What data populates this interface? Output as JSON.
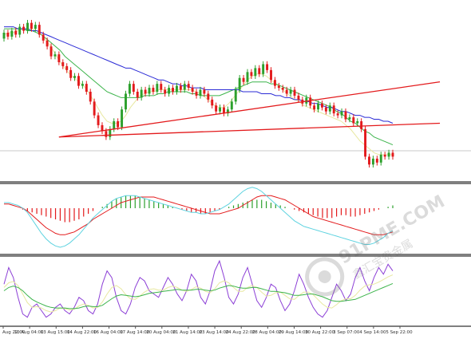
{
  "chart_data": [
    {
      "type": "candlestick",
      "panel": "price",
      "x_labels": [
        "Aug 22:00",
        "10 Aug 04:00",
        "13 Aug 15:00",
        "14 Aug 22:00",
        "16 Aug 04:00",
        "17 Aug 14:00",
        "20 Aug 04:00",
        "21 Aug 14:00",
        "23 Aug 14:00",
        "24 Aug 22:00",
        "28 Aug 04:00",
        "29 Aug 14:00",
        "30 Aug 22:00",
        "3 Sep 07:00",
        "4 Sep 14:00",
        "5 Sep 22:00"
      ],
      "candles": [
        {
          "o": 72,
          "c": 75
        },
        {
          "o": 75,
          "c": 73
        },
        {
          "o": 73,
          "c": 76
        },
        {
          "o": 76,
          "c": 74
        },
        {
          "o": 74,
          "c": 78
        },
        {
          "o": 78,
          "c": 76
        },
        {
          "o": 76,
          "c": 80
        },
        {
          "o": 80,
          "c": 77
        },
        {
          "o": 77,
          "c": 79
        },
        {
          "o": 79,
          "c": 74
        },
        {
          "o": 74,
          "c": 71
        },
        {
          "o": 71,
          "c": 68
        },
        {
          "o": 68,
          "c": 63
        },
        {
          "o": 63,
          "c": 64
        },
        {
          "o": 64,
          "c": 60
        },
        {
          "o": 60,
          "c": 58
        },
        {
          "o": 58,
          "c": 56
        },
        {
          "o": 56,
          "c": 52
        },
        {
          "o": 52,
          "c": 53
        },
        {
          "o": 53,
          "c": 48
        },
        {
          "o": 48,
          "c": 49
        },
        {
          "o": 49,
          "c": 45
        },
        {
          "o": 45,
          "c": 40
        },
        {
          "o": 40,
          "c": 33
        },
        {
          "o": 33,
          "c": 28
        },
        {
          "o": 28,
          "c": 25
        },
        {
          "o": 25,
          "c": 22
        },
        {
          "o": 22,
          "c": 26
        },
        {
          "o": 26,
          "c": 30
        },
        {
          "o": 30,
          "c": 27
        },
        {
          "o": 27,
          "c": 36
        },
        {
          "o": 36,
          "c": 44
        },
        {
          "o": 44,
          "c": 49
        },
        {
          "o": 49,
          "c": 45
        },
        {
          "o": 45,
          "c": 42
        },
        {
          "o": 42,
          "c": 46
        },
        {
          "o": 46,
          "c": 44
        },
        {
          "o": 44,
          "c": 47
        },
        {
          "o": 47,
          "c": 45
        },
        {
          "o": 45,
          "c": 49
        },
        {
          "o": 49,
          "c": 46
        },
        {
          "o": 46,
          "c": 44
        },
        {
          "o": 44,
          "c": 47
        },
        {
          "o": 47,
          "c": 45
        },
        {
          "o": 45,
          "c": 48
        },
        {
          "o": 48,
          "c": 46
        },
        {
          "o": 46,
          "c": 49
        },
        {
          "o": 49,
          "c": 47
        },
        {
          "o": 47,
          "c": 45
        },
        {
          "o": 45,
          "c": 43
        },
        {
          "o": 43,
          "c": 46
        },
        {
          "o": 46,
          "c": 44
        },
        {
          "o": 44,
          "c": 41
        },
        {
          "o": 41,
          "c": 38
        },
        {
          "o": 38,
          "c": 35
        },
        {
          "o": 35,
          "c": 37
        },
        {
          "o": 37,
          "c": 34
        },
        {
          "o": 34,
          "c": 36
        },
        {
          "o": 36,
          "c": 40
        },
        {
          "o": 40,
          "c": 46
        },
        {
          "o": 46,
          "c": 52
        },
        {
          "o": 52,
          "c": 50
        },
        {
          "o": 50,
          "c": 55
        },
        {
          "o": 55,
          "c": 53
        },
        {
          "o": 53,
          "c": 57
        },
        {
          "o": 57,
          "c": 54
        },
        {
          "o": 54,
          "c": 59
        },
        {
          "o": 59,
          "c": 56
        },
        {
          "o": 56,
          "c": 51
        },
        {
          "o": 51,
          "c": 48
        },
        {
          "o": 48,
          "c": 47
        },
        {
          "o": 47,
          "c": 46
        },
        {
          "o": 46,
          "c": 44
        },
        {
          "o": 44,
          "c": 46
        },
        {
          "o": 46,
          "c": 43
        },
        {
          "o": 43,
          "c": 41
        },
        {
          "o": 41,
          "c": 39
        },
        {
          "o": 39,
          "c": 42
        },
        {
          "o": 42,
          "c": 38
        },
        {
          "o": 38,
          "c": 36
        },
        {
          "o": 36,
          "c": 39
        },
        {
          "o": 39,
          "c": 37
        },
        {
          "o": 37,
          "c": 35
        },
        {
          "o": 35,
          "c": 38
        },
        {
          "o": 38,
          "c": 34
        },
        {
          "o": 34,
          "c": 33
        },
        {
          "o": 33,
          "c": 35
        },
        {
          "o": 35,
          "c": 31
        },
        {
          "o": 31,
          "c": 32
        },
        {
          "o": 32,
          "c": 29
        },
        {
          "o": 29,
          "c": 30
        },
        {
          "o": 30,
          "c": 26
        },
        {
          "o": 26,
          "c": 12
        },
        {
          "o": 12,
          "c": 8
        },
        {
          "o": 8,
          "c": 11
        },
        {
          "o": 11,
          "c": 9
        },
        {
          "o": 9,
          "c": 13
        },
        {
          "o": 13,
          "c": 12
        },
        {
          "o": 12,
          "c": 14
        },
        {
          "o": 14,
          "c": 12
        }
      ],
      "moving_averages": [
        {
          "color": "#e8e8a0",
          "values": [
            74,
            75,
            75,
            76,
            77,
            77,
            77,
            76,
            74,
            71,
            68,
            64,
            60,
            57,
            54,
            52,
            50,
            48,
            45,
            41,
            37,
            33,
            30,
            29,
            29,
            30,
            33,
            37,
            40,
            43,
            44,
            45,
            45,
            46,
            46,
            46,
            46,
            46,
            46,
            46,
            46,
            45,
            44,
            42,
            40,
            38,
            37,
            37,
            39,
            42,
            45,
            48,
            51,
            53,
            54,
            54,
            53,
            51,
            49,
            47,
            45,
            43,
            41,
            40,
            38,
            37,
            36,
            35,
            34,
            33,
            32,
            31,
            30,
            28,
            26,
            23,
            20,
            18,
            16,
            14,
            13,
            13,
            13,
            13
          ]
        },
        {
          "color": "#3cb44b",
          "values": [
            77,
            77,
            77,
            77,
            77,
            76,
            76,
            75,
            74,
            72,
            70,
            68,
            66,
            63,
            61,
            59,
            57,
            55,
            53,
            51,
            49,
            47,
            45,
            44,
            43,
            42,
            42,
            42,
            42,
            42,
            43,
            43,
            43,
            44,
            44,
            45,
            45,
            45,
            45,
            45,
            44,
            44,
            43,
            43,
            43,
            43,
            43,
            44,
            45,
            46,
            47,
            48,
            49,
            50,
            50,
            50,
            50,
            49,
            49,
            48,
            47,
            46,
            45,
            44,
            43,
            42,
            41,
            40,
            39,
            38,
            37,
            35,
            34,
            32,
            30,
            29,
            27,
            25,
            24,
            22,
            21,
            20,
            19,
            18
          ]
        },
        {
          "color": "#2b2bd6",
          "values": [
            78,
            78,
            78,
            77,
            77,
            77,
            76,
            76,
            75,
            74,
            73,
            72,
            71,
            70,
            69,
            68,
            67,
            66,
            65,
            64,
            63,
            62,
            61,
            60,
            59,
            58,
            57,
            57,
            56,
            55,
            54,
            53,
            52,
            51,
            51,
            50,
            49,
            49,
            48,
            48,
            47,
            47,
            47,
            46,
            46,
            46,
            46,
            46,
            46,
            46,
            46,
            45,
            45,
            45,
            45,
            44,
            44,
            44,
            43,
            43,
            42,
            42,
            41,
            41,
            40,
            40,
            39,
            39,
            38,
            37,
            37,
            36,
            35,
            35,
            34,
            33,
            33,
            32,
            32,
            31,
            31,
            30,
            30,
            29
          ]
        }
      ],
      "trend_lines": [
        {
          "color": "#e31a1c",
          "from": {
            "bar": 14,
            "value": 22
          },
          "to": {
            "bar": 111,
            "value": 50
          }
        },
        {
          "color": "#e31a1c",
          "from": {
            "bar": 14,
            "value": 22
          },
          "to": {
            "bar": 111,
            "value": 29
          }
        }
      ],
      "horizontal_line": {
        "color": "#c8c8c8",
        "value": 15
      },
      "ylim": [
        0,
        90
      ]
    },
    {
      "type": "histogram",
      "panel": "macd",
      "values": [
        0,
        0,
        0,
        0,
        -1,
        -2,
        -3,
        -4,
        -5,
        -6,
        -7,
        -8,
        -9,
        -10,
        -10,
        -9,
        -8,
        -6,
        -4,
        -2,
        0,
        1,
        3,
        5,
        7,
        8,
        9,
        9,
        9,
        8,
        7,
        6,
        5,
        4,
        3,
        2,
        1,
        0,
        -1,
        -2,
        -3,
        -3,
        -4,
        -4,
        -3,
        -2,
        -1,
        0,
        1,
        2,
        3,
        4,
        5,
        6,
        6,
        6,
        5,
        4,
        3,
        2,
        1,
        0,
        -1,
        -2,
        -3,
        -4,
        -5,
        -6,
        -7,
        -7,
        -7,
        -6,
        -5,
        -5,
        -6,
        -6,
        -5,
        -4,
        -3,
        -2,
        -1,
        0,
        1,
        2
      ],
      "lines": [
        {
          "color": "#e31a1c",
          "values": [
            3,
            3,
            2,
            1,
            0,
            -2,
            -5,
            -8,
            -11,
            -14,
            -16,
            -18,
            -19,
            -19,
            -18,
            -17,
            -15,
            -13,
            -11,
            -8,
            -6,
            -4,
            -2,
            0,
            2,
            4,
            5,
            6,
            7,
            8,
            8,
            8,
            8,
            7,
            6,
            5,
            4,
            3,
            2,
            1,
            0,
            -1,
            -2,
            -3,
            -4,
            -4,
            -4,
            -3,
            -2,
            -1,
            0,
            2,
            4,
            6,
            8,
            9,
            9,
            9,
            8,
            7,
            6,
            4,
            2,
            0,
            -2,
            -4,
            -6,
            -7,
            -8,
            -9,
            -10,
            -11,
            -12,
            -13,
            -14,
            -15,
            -16,
            -17,
            -18,
            -19,
            -19,
            -19,
            -18,
            -17
          ]
        },
        {
          "color": "#5fd3e0",
          "values": [
            4,
            4,
            3,
            2,
            0,
            -3,
            -8,
            -13,
            -18,
            -22,
            -25,
            -27,
            -28,
            -27,
            -25,
            -22,
            -19,
            -15,
            -11,
            -7,
            -4,
            -1,
            2,
            5,
            7,
            8,
            9,
            9,
            9,
            8,
            7,
            6,
            5,
            4,
            3,
            2,
            1,
            0,
            -1,
            -2,
            -3,
            -3,
            -4,
            -4,
            -3,
            -2,
            -1,
            1,
            3,
            6,
            9,
            12,
            14,
            15,
            14,
            12,
            9,
            6,
            3,
            0,
            -3,
            -6,
            -9,
            -11,
            -13,
            -14,
            -15,
            -16,
            -17,
            -18,
            -19,
            -20,
            -21,
            -22,
            -23,
            -24,
            -25,
            -26,
            -26,
            -25,
            -23,
            -21,
            -18,
            -16
          ]
        }
      ],
      "ylim": [
        -32,
        16
      ]
    },
    {
      "type": "line",
      "panel": "oscillator",
      "series": [
        {
          "color": "#8c3fd6",
          "values": [
            60,
            85,
            70,
            40,
            15,
            10,
            25,
            30,
            20,
            10,
            15,
            25,
            30,
            20,
            15,
            25,
            40,
            35,
            20,
            15,
            30,
            60,
            80,
            70,
            40,
            20,
            15,
            30,
            55,
            70,
            65,
            50,
            45,
            40,
            55,
            70,
            60,
            45,
            35,
            50,
            75,
            65,
            40,
            30,
            50,
            80,
            95,
            70,
            40,
            30,
            45,
            70,
            85,
            60,
            35,
            25,
            40,
            60,
            55,
            35,
            20,
            30,
            50,
            75,
            60,
            40,
            25,
            15,
            10,
            20,
            40,
            60,
            50,
            35,
            45,
            70,
            85,
            65,
            50,
            70,
            85,
            75,
            90,
            80
          ]
        },
        {
          "color": "#e8e8a0",
          "values": [
            55,
            62,
            64,
            58,
            45,
            32,
            25,
            26,
            24,
            20,
            18,
            20,
            24,
            23,
            21,
            22,
            27,
            30,
            28,
            24,
            25,
            33,
            45,
            55,
            58,
            53,
            44,
            38,
            37,
            42,
            48,
            52,
            53,
            51,
            51,
            55,
            57,
            55,
            51,
            49,
            52,
            56,
            54,
            49,
            47,
            53,
            62,
            65,
            62,
            55,
            49,
            49,
            55,
            58,
            55,
            48,
            42,
            43,
            47,
            48,
            43,
            38,
            37,
            43,
            48,
            48,
            44,
            37,
            30,
            25,
            24,
            29,
            35,
            38,
            38,
            43,
            51,
            57,
            59,
            60,
            63,
            67,
            71,
            74
          ]
        },
        {
          "color": "#3cb44b",
          "values": [
            50,
            55,
            57,
            55,
            50,
            43,
            37,
            33,
            30,
            27,
            25,
            24,
            24,
            24,
            23,
            23,
            24,
            26,
            27,
            26,
            26,
            28,
            33,
            38,
            42,
            44,
            43,
            42,
            41,
            42,
            44,
            46,
            47,
            48,
            49,
            50,
            51,
            52,
            51,
            51,
            51,
            52,
            52,
            51,
            50,
            51,
            54,
            56,
            58,
            57,
            55,
            54,
            54,
            55,
            55,
            53,
            51,
            49,
            49,
            48,
            47,
            45,
            43,
            43,
            44,
            45,
            45,
            43,
            41,
            38,
            35,
            34,
            34,
            35,
            36,
            37,
            40,
            43,
            46,
            49,
            52,
            55,
            58,
            61
          ]
        }
      ],
      "ylim": [
        0,
        100
      ]
    }
  ],
  "watermark": {
    "text": "91PME.COM",
    "subtext": "鑫汇宝贵金属"
  },
  "colors": {
    "background": "#ffffff",
    "panel_border": "#555555",
    "up": "#2ca02c",
    "down": "#e31a1c",
    "axis_text": "#333333"
  }
}
